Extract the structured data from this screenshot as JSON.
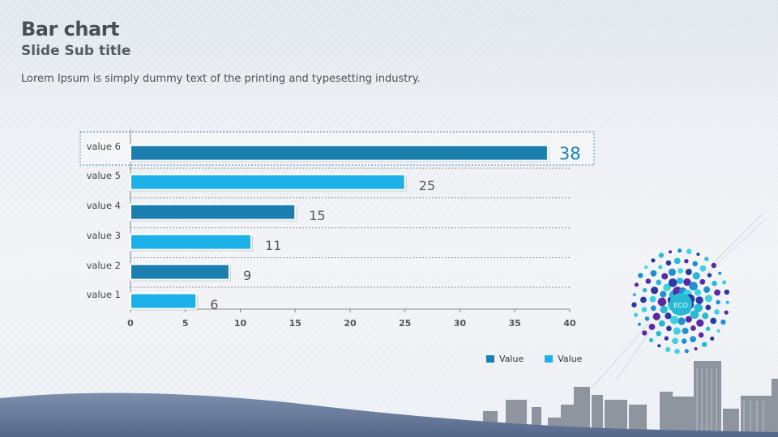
{
  "slide": {
    "title": "Bar chart",
    "subtitle": "Slide Sub title",
    "body_text": "Lorem Ipsum is simply dummy text of the printing and typesetting industry."
  },
  "chart_data": {
    "type": "bar",
    "orientation": "horizontal",
    "categories": [
      "value 1",
      "value 2",
      "value 3",
      "value 4",
      "value 5",
      "value 6"
    ],
    "values": [
      6,
      9,
      11,
      15,
      25,
      38
    ],
    "data_labels": [
      "6",
      "9",
      "11",
      "15",
      "25",
      "38"
    ],
    "x_ticks": [
      "0",
      "5",
      "10",
      "15",
      "20",
      "25",
      "30",
      "35",
      "40"
    ],
    "xlim": [
      0,
      40
    ],
    "highlighted_category": "value 6",
    "colors": {
      "dark": "#1a7fae",
      "light": "#1eb0e8",
      "highlight_label": "#1a7fae"
    },
    "legend": [
      {
        "label": "Value",
        "color": "#1a7fae"
      },
      {
        "label": "Value",
        "color": "#1eb0e8"
      }
    ]
  },
  "decor": {
    "globe_label": "ECO"
  }
}
